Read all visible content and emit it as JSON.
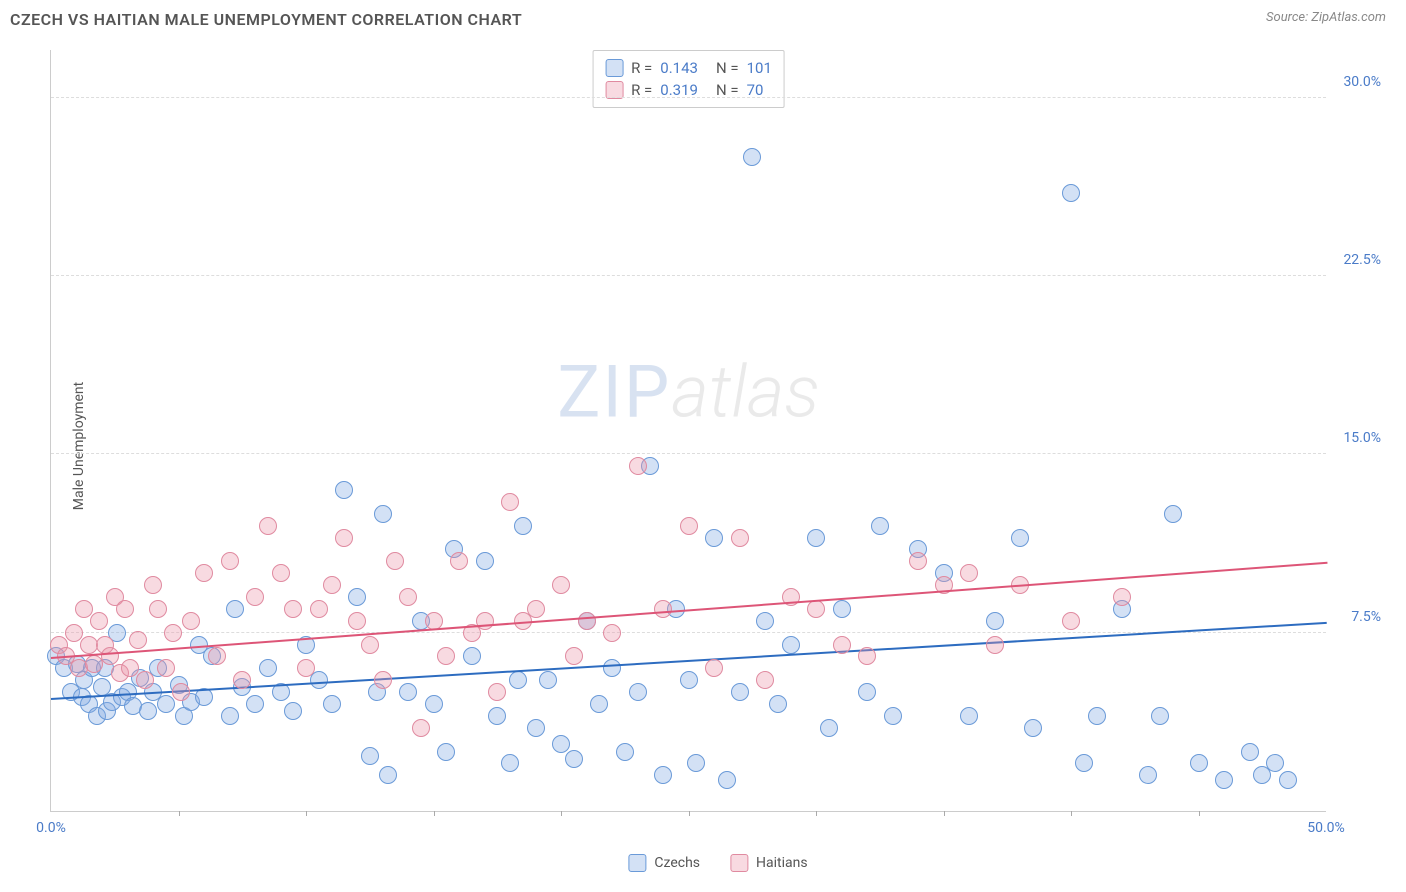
{
  "header": {
    "title": "CZECH VS HAITIAN MALE UNEMPLOYMENT CORRELATION CHART",
    "source": "Source: ZipAtlas.com"
  },
  "watermark": {
    "prefix": "ZIP",
    "suffix": "atlas"
  },
  "chart": {
    "type": "scatter",
    "y_label": "Male Unemployment",
    "x_range": [
      0,
      50
    ],
    "y_range": [
      0,
      32
    ],
    "background_color": "#ffffff",
    "grid_color": "#dddddd",
    "axis_color": "#cccccc",
    "tick_label_color": "#4a7bc8",
    "y_ticks": [
      {
        "value": 7.5,
        "label": "7.5%"
      },
      {
        "value": 15.0,
        "label": "15.0%"
      },
      {
        "value": 22.5,
        "label": "22.5%"
      },
      {
        "value": 30.0,
        "label": "30.0%"
      }
    ],
    "x_ticks_minor": [
      5,
      10,
      15,
      20,
      25,
      30,
      35,
      40,
      45
    ],
    "x_tick_labels": [
      {
        "value": 0,
        "label": "0.0%"
      },
      {
        "value": 50,
        "label": "50.0%"
      }
    ],
    "marker_radius": 9,
    "marker_stroke_width": 1.5,
    "series": [
      {
        "name": "Czechs",
        "fill": "rgba(130,170,225,0.35)",
        "stroke": "#6a9ad8",
        "trend_color": "#2d6cc0",
        "trend_width": 2,
        "r": 0.143,
        "n": 101,
        "trend": {
          "x0": 0,
          "y0": 4.8,
          "x1": 50,
          "y1": 8.0
        },
        "points": [
          [
            0.2,
            6.5
          ],
          [
            0.5,
            6.0
          ],
          [
            0.8,
            5.0
          ],
          [
            1.0,
            6.2
          ],
          [
            1.2,
            4.8
          ],
          [
            1.3,
            5.5
          ],
          [
            1.5,
            4.5
          ],
          [
            1.6,
            6.0
          ],
          [
            1.8,
            4.0
          ],
          [
            2.0,
            5.2
          ],
          [
            2.1,
            6.0
          ],
          [
            2.2,
            4.2
          ],
          [
            2.4,
            4.6
          ],
          [
            2.6,
            7.5
          ],
          [
            2.8,
            4.8
          ],
          [
            3.0,
            5.0
          ],
          [
            3.2,
            4.4
          ],
          [
            3.5,
            5.6
          ],
          [
            3.8,
            4.2
          ],
          [
            4.0,
            5.0
          ],
          [
            4.2,
            6.0
          ],
          [
            4.5,
            4.5
          ],
          [
            5.0,
            5.3
          ],
          [
            5.2,
            4.0
          ],
          [
            5.5,
            4.6
          ],
          [
            5.8,
            7.0
          ],
          [
            6.0,
            4.8
          ],
          [
            6.3,
            6.5
          ],
          [
            7.0,
            4.0
          ],
          [
            7.2,
            8.5
          ],
          [
            7.5,
            5.2
          ],
          [
            8.0,
            4.5
          ],
          [
            8.5,
            6.0
          ],
          [
            9.0,
            5.0
          ],
          [
            9.5,
            4.2
          ],
          [
            10.0,
            7.0
          ],
          [
            10.5,
            5.5
          ],
          [
            11.0,
            4.5
          ],
          [
            11.5,
            13.5
          ],
          [
            12.0,
            9.0
          ],
          [
            12.5,
            2.3
          ],
          [
            12.8,
            5.0
          ],
          [
            13.0,
            12.5
          ],
          [
            13.2,
            1.5
          ],
          [
            14.0,
            5.0
          ],
          [
            14.5,
            8.0
          ],
          [
            15.0,
            4.5
          ],
          [
            15.5,
            2.5
          ],
          [
            15.8,
            11.0
          ],
          [
            16.5,
            6.5
          ],
          [
            17.0,
            10.5
          ],
          [
            17.5,
            4.0
          ],
          [
            18.0,
            2.0
          ],
          [
            18.3,
            5.5
          ],
          [
            18.5,
            12.0
          ],
          [
            19.0,
            3.5
          ],
          [
            19.5,
            5.5
          ],
          [
            20.0,
            2.8
          ],
          [
            20.5,
            2.2
          ],
          [
            21.0,
            8.0
          ],
          [
            21.5,
            4.5
          ],
          [
            22.0,
            6.0
          ],
          [
            22.5,
            2.5
          ],
          [
            23.0,
            5.0
          ],
          [
            23.5,
            14.5
          ],
          [
            24.0,
            1.5
          ],
          [
            24.5,
            8.5
          ],
          [
            25.0,
            5.5
          ],
          [
            25.3,
            2.0
          ],
          [
            26.0,
            11.5
          ],
          [
            26.5,
            1.3
          ],
          [
            27.0,
            5.0
          ],
          [
            27.5,
            27.5
          ],
          [
            28.0,
            8.0
          ],
          [
            28.5,
            4.5
          ],
          [
            29.0,
            7.0
          ],
          [
            30.0,
            11.5
          ],
          [
            30.5,
            3.5
          ],
          [
            31.0,
            8.5
          ],
          [
            32.0,
            5.0
          ],
          [
            32.5,
            12.0
          ],
          [
            33.0,
            4.0
          ],
          [
            34.0,
            11.0
          ],
          [
            35.0,
            10.0
          ],
          [
            36.0,
            4.0
          ],
          [
            37.0,
            8.0
          ],
          [
            38.0,
            11.5
          ],
          [
            38.5,
            3.5
          ],
          [
            40.0,
            26.0
          ],
          [
            40.5,
            2.0
          ],
          [
            41.0,
            4.0
          ],
          [
            42.0,
            8.5
          ],
          [
            43.0,
            1.5
          ],
          [
            43.5,
            4.0
          ],
          [
            44.0,
            12.5
          ],
          [
            45.0,
            2.0
          ],
          [
            46.0,
            1.3
          ],
          [
            47.0,
            2.5
          ],
          [
            47.5,
            1.5
          ],
          [
            48.0,
            2.0
          ],
          [
            48.5,
            1.3
          ]
        ]
      },
      {
        "name": "Haitians",
        "fill": "rgba(235,150,170,0.35)",
        "stroke": "#e08aa0",
        "trend_color": "#dd5577",
        "trend_width": 2,
        "r": 0.319,
        "n": 70,
        "trend": {
          "x0": 0,
          "y0": 6.5,
          "x1": 50,
          "y1": 10.5
        },
        "points": [
          [
            0.3,
            7.0
          ],
          [
            0.6,
            6.5
          ],
          [
            0.9,
            7.5
          ],
          [
            1.1,
            6.0
          ],
          [
            1.3,
            8.5
          ],
          [
            1.5,
            7.0
          ],
          [
            1.7,
            6.2
          ],
          [
            1.9,
            8.0
          ],
          [
            2.1,
            7.0
          ],
          [
            2.3,
            6.5
          ],
          [
            2.5,
            9.0
          ],
          [
            2.7,
            5.8
          ],
          [
            2.9,
            8.5
          ],
          [
            3.1,
            6.0
          ],
          [
            3.4,
            7.2
          ],
          [
            3.7,
            5.5
          ],
          [
            4.0,
            9.5
          ],
          [
            4.2,
            8.5
          ],
          [
            4.5,
            6.0
          ],
          [
            4.8,
            7.5
          ],
          [
            5.1,
            5.0
          ],
          [
            5.5,
            8.0
          ],
          [
            6.0,
            10.0
          ],
          [
            6.5,
            6.5
          ],
          [
            7.0,
            10.5
          ],
          [
            7.5,
            5.5
          ],
          [
            8.0,
            9.0
          ],
          [
            8.5,
            12.0
          ],
          [
            9.0,
            10.0
          ],
          [
            9.5,
            8.5
          ],
          [
            10.0,
            6.0
          ],
          [
            10.5,
            8.5
          ],
          [
            11.0,
            9.5
          ],
          [
            11.5,
            11.5
          ],
          [
            12.0,
            8.0
          ],
          [
            12.5,
            7.0
          ],
          [
            13.0,
            5.5
          ],
          [
            13.5,
            10.5
          ],
          [
            14.0,
            9.0
          ],
          [
            14.5,
            3.5
          ],
          [
            15.0,
            8.0
          ],
          [
            15.5,
            6.5
          ],
          [
            16.0,
            10.5
          ],
          [
            16.5,
            7.5
          ],
          [
            17.0,
            8.0
          ],
          [
            17.5,
            5.0
          ],
          [
            18.0,
            13.0
          ],
          [
            18.5,
            8.0
          ],
          [
            19.0,
            8.5
          ],
          [
            20.0,
            9.5
          ],
          [
            20.5,
            6.5
          ],
          [
            21.0,
            8.0
          ],
          [
            22.0,
            7.5
          ],
          [
            23.0,
            14.5
          ],
          [
            24.0,
            8.5
          ],
          [
            25.0,
            12.0
          ],
          [
            26.0,
            6.0
          ],
          [
            27.0,
            11.5
          ],
          [
            28.0,
            5.5
          ],
          [
            29.0,
            9.0
          ],
          [
            30.0,
            8.5
          ],
          [
            31.0,
            7.0
          ],
          [
            32.0,
            6.5
          ],
          [
            34.0,
            10.5
          ],
          [
            35.0,
            9.5
          ],
          [
            36.0,
            10.0
          ],
          [
            37.0,
            7.0
          ],
          [
            38.0,
            9.5
          ],
          [
            40.0,
            8.0
          ],
          [
            42.0,
            9.0
          ]
        ]
      }
    ]
  },
  "stats_box": {
    "r_label": "R =",
    "n_label": "N ="
  },
  "legend_bottom_labels": [
    "Czechs",
    "Haitians"
  ]
}
